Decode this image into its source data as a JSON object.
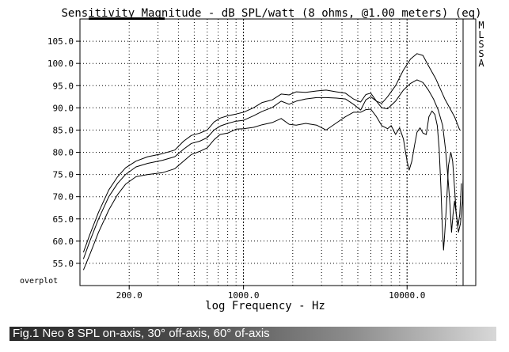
{
  "chart_data": {
    "type": "line",
    "title": "Sensitivity Magnitude - dB SPL/watt (8 ohms, @1.00 meters) (eq)",
    "xlabel": "log Frequency - Hz",
    "ylabel": "",
    "x_scale": "log",
    "xlim": [
      100,
      22000
    ],
    "ylim": [
      50,
      110
    ],
    "grid": true,
    "x_tick_labels": [
      {
        "value": 200,
        "label": "200.0"
      },
      {
        "value": 1000,
        "label": "1000.0"
      },
      {
        "value": 10000,
        "label": "10000.0"
      }
    ],
    "y_tick_labels": [
      {
        "value": 105,
        "label": "105.0"
      },
      {
        "value": 100,
        "label": "100.0"
      },
      {
        "value": 95,
        "label": "95.0"
      },
      {
        "value": 90,
        "label": "90.0"
      },
      {
        "value": 85,
        "label": "85.0"
      },
      {
        "value": 80,
        "label": "80.0"
      },
      {
        "value": 75,
        "label": "75.0"
      },
      {
        "value": 70,
        "label": "70.0"
      },
      {
        "value": 65,
        "label": "65.0"
      },
      {
        "value": 60,
        "label": "60.0"
      },
      {
        "value": 55,
        "label": "55.0"
      }
    ],
    "bottom_left_label": "overplot",
    "side_label": [
      "M",
      "L",
      "S",
      "S",
      "A"
    ],
    "series": [
      {
        "points": [
          [
            105,
            57.5
          ],
          [
            115,
            61.5
          ],
          [
            130,
            66.5
          ],
          [
            150,
            71.5
          ],
          [
            170,
            74.5
          ],
          [
            190,
            76.5
          ],
          [
            220,
            78
          ],
          [
            260,
            79
          ],
          [
            320,
            79.7
          ],
          [
            380,
            80.5
          ],
          [
            430,
            82.5
          ],
          [
            480,
            83.8
          ],
          [
            540,
            84.3
          ],
          [
            600,
            85
          ],
          [
            660,
            86.8
          ],
          [
            720,
            87.7
          ],
          [
            800,
            88.2
          ],
          [
            900,
            88.6
          ],
          [
            1000,
            89
          ],
          [
            1150,
            90
          ],
          [
            1300,
            91.2
          ],
          [
            1500,
            91.8
          ],
          [
            1700,
            93.1
          ],
          [
            1900,
            92.9
          ],
          [
            2100,
            93.6
          ],
          [
            2400,
            93.5
          ],
          [
            2800,
            93.8
          ],
          [
            3200,
            94
          ],
          [
            3700,
            93.6
          ],
          [
            4200,
            93.3
          ],
          [
            4700,
            92
          ],
          [
            5200,
            91.3
          ],
          [
            5600,
            93
          ],
          [
            6000,
            93.3
          ],
          [
            6500,
            91.5
          ],
          [
            7000,
            91
          ],
          [
            7600,
            92.5
          ],
          [
            8500,
            95
          ],
          [
            9500,
            98.5
          ],
          [
            10500,
            101
          ],
          [
            11500,
            102.2
          ],
          [
            12500,
            101.8
          ],
          [
            13500,
            99.5
          ],
          [
            15000,
            96.5
          ],
          [
            17000,
            92
          ],
          [
            19500,
            88
          ],
          [
            21000,
            85
          ]
        ]
      },
      {
        "points": [
          [
            105,
            56
          ],
          [
            115,
            60
          ],
          [
            130,
            65
          ],
          [
            150,
            70
          ],
          [
            170,
            73
          ],
          [
            190,
            75
          ],
          [
            220,
            76.7
          ],
          [
            260,
            77.5
          ],
          [
            320,
            78.2
          ],
          [
            380,
            79
          ],
          [
            430,
            80.7
          ],
          [
            480,
            82
          ],
          [
            540,
            82.5
          ],
          [
            600,
            83.3
          ],
          [
            660,
            85
          ],
          [
            720,
            85.9
          ],
          [
            800,
            86.5
          ],
          [
            900,
            87
          ],
          [
            1000,
            87.2
          ],
          [
            1150,
            88.2
          ],
          [
            1300,
            89.2
          ],
          [
            1500,
            90.1
          ],
          [
            1700,
            91.5
          ],
          [
            1900,
            90.8
          ],
          [
            2100,
            91.5
          ],
          [
            2400,
            92
          ],
          [
            2800,
            92.3
          ],
          [
            3200,
            92.3
          ],
          [
            3700,
            92.2
          ],
          [
            4200,
            92
          ],
          [
            4700,
            90.8
          ],
          [
            5200,
            89.5
          ],
          [
            5600,
            91.8
          ],
          [
            6000,
            92.5
          ],
          [
            6500,
            91.5
          ],
          [
            7000,
            90
          ],
          [
            7600,
            89.8
          ],
          [
            8500,
            91.5
          ],
          [
            9500,
            94
          ],
          [
            10500,
            95.5
          ],
          [
            11500,
            96.3
          ],
          [
            12500,
            95.7
          ],
          [
            13500,
            94
          ],
          [
            14500,
            92
          ],
          [
            15500,
            89.5
          ],
          [
            16500,
            86
          ],
          [
            17200,
            80.5
          ],
          [
            17800,
            74
          ],
          [
            18300,
            68
          ],
          [
            18700,
            62
          ],
          [
            19100,
            66
          ],
          [
            19500,
            69
          ],
          [
            20000,
            66
          ],
          [
            20500,
            63.5
          ],
          [
            21000,
            66
          ],
          [
            21500,
            73
          ]
        ]
      },
      {
        "points": [
          [
            105,
            53.5
          ],
          [
            115,
            57
          ],
          [
            130,
            62
          ],
          [
            150,
            67
          ],
          [
            170,
            70.5
          ],
          [
            190,
            72.8
          ],
          [
            220,
            74.5
          ],
          [
            260,
            75
          ],
          [
            320,
            75.4
          ],
          [
            380,
            76.3
          ],
          [
            430,
            78
          ],
          [
            480,
            79.5
          ],
          [
            540,
            80.2
          ],
          [
            600,
            81
          ],
          [
            660,
            82.8
          ],
          [
            720,
            84
          ],
          [
            800,
            84.3
          ],
          [
            900,
            85.2
          ],
          [
            1000,
            85.3
          ],
          [
            1150,
            85.6
          ],
          [
            1300,
            86.2
          ],
          [
            1500,
            86.7
          ],
          [
            1700,
            87.6
          ],
          [
            1900,
            86.3
          ],
          [
            2100,
            86.1
          ],
          [
            2400,
            86.5
          ],
          [
            2800,
            86.1
          ],
          [
            3200,
            85
          ],
          [
            3700,
            86.6
          ],
          [
            4200,
            88
          ],
          [
            4700,
            89
          ],
          [
            5200,
            89
          ],
          [
            5600,
            89.6
          ],
          [
            6000,
            89.7
          ],
          [
            6500,
            88
          ],
          [
            7000,
            86
          ],
          [
            7600,
            85.3
          ],
          [
            8000,
            86
          ],
          [
            8500,
            84
          ],
          [
            9000,
            85.5
          ],
          [
            9500,
            83
          ],
          [
            10000,
            78
          ],
          [
            10300,
            76
          ],
          [
            10700,
            78
          ],
          [
            11100,
            81.5
          ],
          [
            11500,
            84.5
          ],
          [
            12000,
            85.5
          ],
          [
            12500,
            84.3
          ],
          [
            13100,
            84
          ],
          [
            13600,
            88
          ],
          [
            14200,
            89.3
          ],
          [
            14800,
            88.5
          ],
          [
            15300,
            86
          ],
          [
            15700,
            81
          ],
          [
            16100,
            72
          ],
          [
            16400,
            64
          ],
          [
            16700,
            58
          ],
          [
            17000,
            62
          ],
          [
            17400,
            68
          ],
          [
            17900,
            77
          ],
          [
            18500,
            80
          ],
          [
            19000,
            78
          ],
          [
            19500,
            72
          ],
          [
            20000,
            66
          ],
          [
            20600,
            62
          ],
          [
            21200,
            64
          ],
          [
            21800,
            69
          ],
          [
            22000,
            74
          ]
        ]
      }
    ]
  },
  "caption": "Fig.1 Neo 8 SPL on-axis, 30° off-axis, 60° of-axis",
  "colors": {
    "background": "#ffffff",
    "ink": "#000000"
  }
}
